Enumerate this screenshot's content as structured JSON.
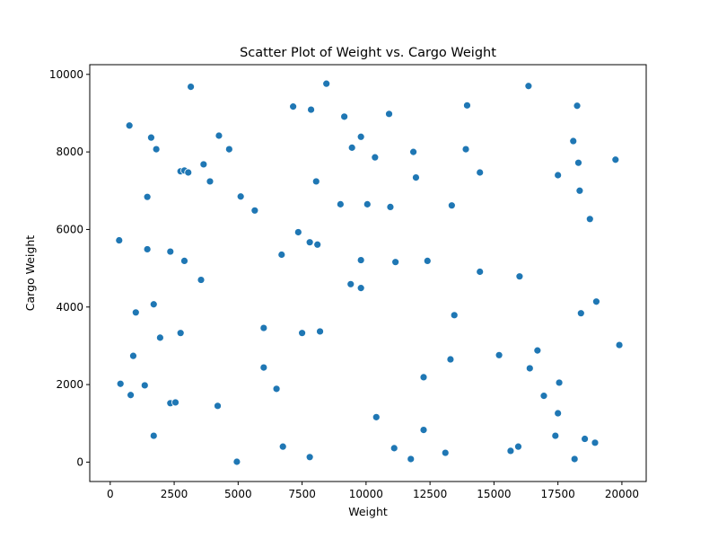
{
  "chart_data": {
    "type": "scatter",
    "title": "Scatter Plot of Weight vs. Cargo Weight",
    "xlabel": "Weight",
    "ylabel": "Cargo Weight",
    "xlim": [
      -800,
      20950
    ],
    "ylim": [
      -500,
      10250
    ],
    "xticks": [
      0,
      2500,
      5000,
      7500,
      10000,
      12500,
      15000,
      17500,
      20000
    ],
    "yticks": [
      0,
      2000,
      4000,
      6000,
      8000,
      10000
    ],
    "grid": false,
    "legend": "none",
    "color": "#1f77b4",
    "points": [
      [
        3150,
        9680
      ],
      [
        8450,
        9760
      ],
      [
        16350,
        9700
      ],
      [
        18250,
        9190
      ],
      [
        13950,
        9200
      ],
      [
        7150,
        9170
      ],
      [
        7850,
        9090
      ],
      [
        750,
        8680
      ],
      [
        9150,
        8910
      ],
      [
        10900,
        8980
      ],
      [
        1600,
        8370
      ],
      [
        4250,
        8420
      ],
      [
        9800,
        8390
      ],
      [
        9450,
        8110
      ],
      [
        1800,
        8070
      ],
      [
        4650,
        8070
      ],
      [
        11850,
        8000
      ],
      [
        13900,
        8070
      ],
      [
        10350,
        7860
      ],
      [
        18100,
        8280
      ],
      [
        18300,
        7720
      ],
      [
        19750,
        7800
      ],
      [
        2750,
        7500
      ],
      [
        2900,
        7520
      ],
      [
        3050,
        7470
      ],
      [
        3650,
        7680
      ],
      [
        14450,
        7470
      ],
      [
        17500,
        7400
      ],
      [
        11950,
        7340
      ],
      [
        3900,
        7240
      ],
      [
        8050,
        7240
      ],
      [
        18350,
        7000
      ],
      [
        1450,
        6840
      ],
      [
        5100,
        6850
      ],
      [
        9000,
        6650
      ],
      [
        10050,
        6650
      ],
      [
        10950,
        6580
      ],
      [
        13350,
        6620
      ],
      [
        5650,
        6490
      ],
      [
        18750,
        6270
      ],
      [
        7350,
        5930
      ],
      [
        350,
        5720
      ],
      [
        7800,
        5670
      ],
      [
        8100,
        5610
      ],
      [
        1450,
        5490
      ],
      [
        2350,
        5430
      ],
      [
        6700,
        5350
      ],
      [
        2900,
        5190
      ],
      [
        9800,
        5210
      ],
      [
        11150,
        5160
      ],
      [
        12400,
        5190
      ],
      [
        14450,
        4910
      ],
      [
        16000,
        4790
      ],
      [
        3550,
        4700
      ],
      [
        9400,
        4590
      ],
      [
        9800,
        4490
      ],
      [
        19000,
        4140
      ],
      [
        1700,
        4070
      ],
      [
        1000,
        3860
      ],
      [
        13450,
        3790
      ],
      [
        18400,
        3840
      ],
      [
        6000,
        3460
      ],
      [
        7500,
        3330
      ],
      [
        8200,
        3370
      ],
      [
        2750,
        3330
      ],
      [
        1950,
        3210
      ],
      [
        19900,
        3020
      ],
      [
        900,
        2740
      ],
      [
        15200,
        2760
      ],
      [
        16700,
        2880
      ],
      [
        13300,
        2650
      ],
      [
        6000,
        2440
      ],
      [
        16400,
        2420
      ],
      [
        12250,
        2190
      ],
      [
        17550,
        2050
      ],
      [
        400,
        2020
      ],
      [
        1350,
        1980
      ],
      [
        6500,
        1890
      ],
      [
        800,
        1730
      ],
      [
        16950,
        1710
      ],
      [
        2350,
        1520
      ],
      [
        2550,
        1540
      ],
      [
        4200,
        1450
      ],
      [
        17500,
        1260
      ],
      [
        10400,
        1160
      ],
      [
        12250,
        830
      ],
      [
        1700,
        680
      ],
      [
        17400,
        680
      ],
      [
        18550,
        600
      ],
      [
        18950,
        500
      ],
      [
        6750,
        400
      ],
      [
        11100,
        360
      ],
      [
        15950,
        400
      ],
      [
        13100,
        240
      ],
      [
        15650,
        290
      ],
      [
        7800,
        130
      ],
      [
        11750,
        80
      ],
      [
        18150,
        80
      ],
      [
        4950,
        10
      ]
    ]
  }
}
